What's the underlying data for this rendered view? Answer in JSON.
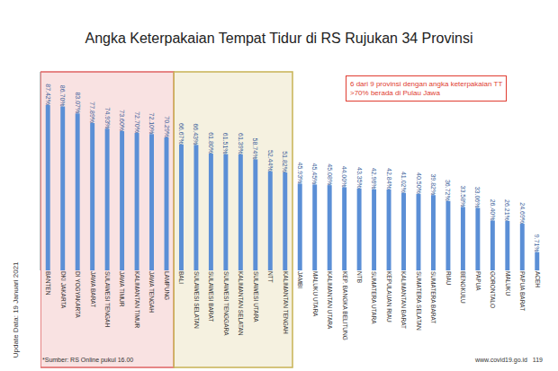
{
  "chart_data": {
    "type": "bar",
    "title": "Angka Keterpakaian Tempat Tidur di RS Rujukan 34 Provinsi",
    "annotation": {
      "lines": [
        "6 dari 9 provinsi dengan angka keterpakaian TT",
        ">70% berada di Pulau Jawa"
      ],
      "color": "#e03c31"
    },
    "note": "Update Data: 19 Januari 2021",
    "source": "*Sumber: RS Online pukul 16.00",
    "footer": [
      "www.covid19.go.id",
      "119"
    ],
    "categories": [
      "BANTEN",
      "DKI JAKARTA",
      "DI YOGYAKARTA",
      "JAWA BARAT",
      "SULAWESI TENGAH",
      "JAWA TIMUR",
      "KALIMANTAN TIMUR",
      "JAWA TENGAH",
      "LAMPUNG",
      "BALI",
      "SULAWESI SELATAN",
      "SULAWESI BARAT",
      "SULAWESI TENGGARA",
      "KALIMANTAN SELATAN",
      "SULAWESI UTARA",
      "NTT",
      "KALIMANTAN TENGAH",
      "JAMBI",
      "MALUKU UTARA",
      "KALIMANTAN UTARA",
      "KEP. BANGKA BELITUNG",
      "NTB",
      "SUMATERA UTARA",
      "KEPULAUAN RIAU",
      "KALIMANTAN BARAT",
      "SUMATERA SELATAN",
      "SUMATERA BARAT",
      "RIAU",
      "BENGKULU",
      "PAPUA",
      "GORONTALO",
      "MALUKU",
      "PAPUA BARAT",
      "ACEH"
    ],
    "values": [
      87.42,
      86.7,
      83.07,
      77.89,
      74.93,
      73.6,
      72.7,
      72.1,
      70.29,
      66.67,
      66.43,
      61.8,
      61.51,
      61.39,
      58.74,
      52.44,
      51.82,
      45.93,
      45.45,
      45.08,
      44.0,
      43.35,
      42.96,
      42.84,
      41.02,
      40.5,
      39.82,
      36.72,
      33.58,
      33.06,
      26.4,
      26.21,
      24.69,
      9.71
    ],
    "value_labels": [
      "87.42%",
      "86.70%",
      "83.07%",
      "77.89%",
      "74.93%",
      "73.60%",
      "72.70%",
      "72.10%",
      "70.29%",
      "66.67%",
      "66.43%",
      "61.80%",
      "61.51%",
      "61.39%",
      "58.74%",
      "52.44%",
      "51.82%",
      "45.93%",
      "45.45%",
      "45.08%",
      "44.00%",
      "43.35%",
      "42.96%",
      "42.84%",
      "41.02%",
      "40.50%",
      "39.82%",
      "36.72%",
      "33.58%",
      "33.06%",
      "26.40%",
      "26.21%",
      "24.69%",
      "9.71%"
    ],
    "color": "#5b8fd6",
    "data_labels": true,
    "ylim": [
      0,
      105
    ],
    "tick_labels": "x",
    "highlights": [
      {
        "from": "BANTEN",
        "to": "LAMPUNG",
        "color": "#e06666"
      },
      {
        "from": "BALI",
        "to": "KALIMANTAN TENGAH",
        "color": "#c9b458"
      }
    ]
  }
}
